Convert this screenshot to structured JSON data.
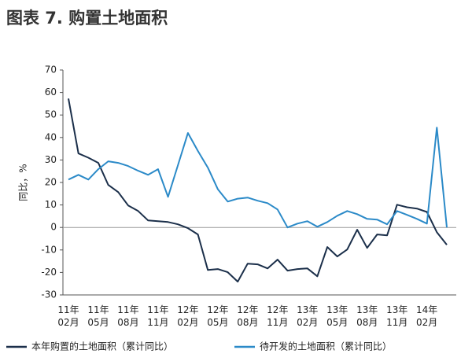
{
  "chart_data": {
    "type": "line",
    "title": "图表 7. 购置土地面积",
    "y_label": "同比，%",
    "categories": [
      "11年\n02月",
      null,
      null,
      "11年\n05月",
      null,
      null,
      "11年\n08月",
      null,
      null,
      "11年\n11月",
      null,
      null,
      "12年\n02月",
      null,
      null,
      "12年\n05月",
      null,
      null,
      "12年\n08月",
      null,
      null,
      "12年\n11月",
      null,
      null,
      "13年\n02月",
      null,
      null,
      "13年\n05月",
      null,
      null,
      "13年\n08月",
      null,
      null,
      "13年\n11月",
      null,
      null,
      "14年\n02月",
      null,
      null
    ],
    "series": [
      {
        "name": "本年购置的土地面积（累计同比）",
        "color": "#1b2f4a",
        "values": [
          57.3,
          32.9,
          31,
          28.7,
          18.9,
          15.7,
          9.8,
          7.3,
          3.1,
          2.8,
          2.4,
          1.4,
          -0.3,
          -3.1,
          -18.9,
          -18.5,
          -19.9,
          -24.1,
          -16.1,
          -16.4,
          -18.2,
          -14.3,
          -19.2,
          -18.5,
          -18.2,
          -21.7,
          -8.7,
          -12.9,
          -9.8,
          -1.0,
          -9.1,
          -3.1,
          -3.5,
          10.1,
          9,
          8.4,
          6.9,
          -2.1,
          -7.7
        ]
      },
      {
        "name": "待开发的土地面积（累计同比）",
        "color": "#2b8ac8",
        "values": [
          21.3,
          23.4,
          21.3,
          25.9,
          29.4,
          28.7,
          27.3,
          25.2,
          23.4,
          25.9,
          13.6,
          27.7,
          42,
          34,
          26.6,
          17,
          11.5,
          12.8,
          13.3,
          11.9,
          10.8,
          8,
          0,
          1.7,
          2.8,
          0.3,
          2.4,
          5.2,
          7.3,
          5.9,
          3.8,
          3.5,
          1.4,
          7.3,
          5.6,
          3.8,
          1.7,
          44.4,
          0
        ]
      }
    ],
    "ylim": [
      -30,
      70
    ],
    "yticks": [
      -30,
      -20,
      -10,
      0,
      10,
      20,
      30,
      40,
      50,
      60,
      70
    ],
    "grid": false,
    "legend": "bottom"
  }
}
